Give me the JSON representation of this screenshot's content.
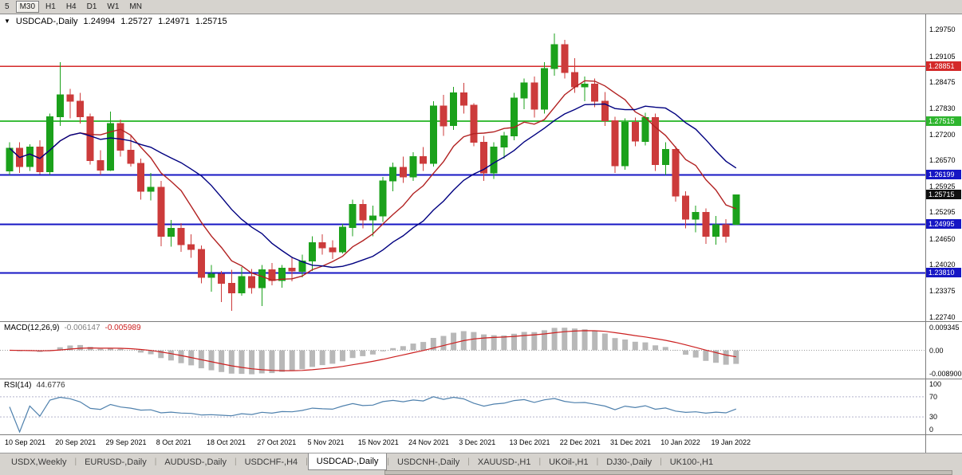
{
  "toolbar": {
    "periods": [
      {
        "label": "5",
        "pressed": false
      },
      {
        "label": "M30",
        "pressed": true
      },
      {
        "label": "H1",
        "pressed": false
      },
      {
        "label": "H4",
        "pressed": false
      },
      {
        "label": "D1",
        "pressed": false
      },
      {
        "label": "W1",
        "pressed": false
      },
      {
        "label": "MN",
        "pressed": false
      }
    ]
  },
  "chart_header": {
    "dropdown_icon": "▼",
    "symbol": "USDCAD-,Daily",
    "open": "1.24994",
    "high": "1.25727",
    "low": "1.24971",
    "close": "1.25715"
  },
  "chart_data": {
    "type": "candlestick",
    "symbol": "USDCAD-,Daily",
    "timeframe": "Daily",
    "ylim": [
      1.22629,
      1.30119
    ],
    "candle_up_color": "#1ba11b",
    "candle_down_color": "#cc3b3b",
    "candles": [
      [
        1.263,
        1.27,
        1.262,
        1.2685
      ],
      [
        1.2685,
        1.27,
        1.2625,
        1.264
      ],
      [
        1.264,
        1.2695,
        1.263,
        1.2688
      ],
      [
        1.2688,
        1.2705,
        1.2622,
        1.2628
      ],
      [
        1.2628,
        1.277,
        1.262,
        1.2762
      ],
      [
        1.2762,
        1.2895,
        1.274,
        1.2815
      ],
      [
        1.2815,
        1.283,
        1.2758,
        1.28
      ],
      [
        1.28,
        1.282,
        1.2745,
        1.2762
      ],
      [
        1.2762,
        1.277,
        1.2645,
        1.2655
      ],
      [
        1.2655,
        1.268,
        1.262,
        1.2632
      ],
      [
        1.2632,
        1.2775,
        1.263,
        1.2745
      ],
      [
        1.2745,
        1.2755,
        1.2665,
        1.268
      ],
      [
        1.268,
        1.2718,
        1.264,
        1.2648
      ],
      [
        1.2648,
        1.266,
        1.256,
        1.258
      ],
      [
        1.258,
        1.2625,
        1.2558,
        1.259
      ],
      [
        1.259,
        1.2605,
        1.2446,
        1.247
      ],
      [
        1.247,
        1.251,
        1.2445,
        1.249
      ],
      [
        1.249,
        1.2502,
        1.2432,
        1.245
      ],
      [
        1.245,
        1.2475,
        1.2418,
        1.2438
      ],
      [
        1.2438,
        1.2448,
        1.2355,
        1.237
      ],
      [
        1.237,
        1.24,
        1.2335,
        1.2378
      ],
      [
        1.2378,
        1.2385,
        1.231,
        1.2355
      ],
      [
        1.2355,
        1.2388,
        1.2288,
        1.2332
      ],
      [
        1.2332,
        1.2395,
        1.2325,
        1.2372
      ],
      [
        1.2372,
        1.239,
        1.233,
        1.2345
      ],
      [
        1.2345,
        1.24,
        1.23,
        1.2388
      ],
      [
        1.2388,
        1.2405,
        1.235,
        1.2362
      ],
      [
        1.2362,
        1.24,
        1.2345,
        1.2392
      ],
      [
        1.2392,
        1.242,
        1.236,
        1.2385
      ],
      [
        1.2385,
        1.2425,
        1.237,
        1.241
      ],
      [
        1.241,
        1.247,
        1.2385,
        1.2455
      ],
      [
        1.2455,
        1.2475,
        1.2425,
        1.2442
      ],
      [
        1.2442,
        1.246,
        1.2415,
        1.2432
      ],
      [
        1.2432,
        1.25,
        1.2428,
        1.2492
      ],
      [
        1.2492,
        1.256,
        1.247,
        1.2548
      ],
      [
        1.2548,
        1.256,
        1.249,
        1.251
      ],
      [
        1.251,
        1.2545,
        1.247,
        1.252
      ],
      [
        1.252,
        1.2615,
        1.2505,
        1.2605
      ],
      [
        1.2605,
        1.265,
        1.258,
        1.2638
      ],
      [
        1.2638,
        1.2665,
        1.26,
        1.2615
      ],
      [
        1.2615,
        1.2675,
        1.2605,
        1.2665
      ],
      [
        1.2665,
        1.2688,
        1.263,
        1.2648
      ],
      [
        1.2648,
        1.28,
        1.264,
        1.2788
      ],
      [
        1.2788,
        1.2815,
        1.2715,
        1.274
      ],
      [
        1.274,
        1.2835,
        1.273,
        1.282
      ],
      [
        1.282,
        1.2845,
        1.277,
        1.279
      ],
      [
        1.279,
        1.2795,
        1.269,
        1.27
      ],
      [
        1.27,
        1.2715,
        1.2605,
        1.2625
      ],
      [
        1.2625,
        1.27,
        1.261,
        1.2688
      ],
      [
        1.2688,
        1.2725,
        1.266,
        1.2715
      ],
      [
        1.2715,
        1.282,
        1.2705,
        1.2808
      ],
      [
        1.2808,
        1.2855,
        1.278,
        1.2845
      ],
      [
        1.2845,
        1.286,
        1.276,
        1.278
      ],
      [
        1.278,
        1.2895,
        1.277,
        1.288
      ],
      [
        1.288,
        1.2965,
        1.2862,
        1.2938
      ],
      [
        1.2938,
        1.295,
        1.2855,
        1.287
      ],
      [
        1.287,
        1.2905,
        1.282,
        1.2835
      ],
      [
        1.2835,
        1.286,
        1.28,
        1.2842
      ],
      [
        1.2842,
        1.2855,
        1.2785,
        1.28
      ],
      [
        1.28,
        1.2822,
        1.274,
        1.2752
      ],
      [
        1.2752,
        1.2762,
        1.2625,
        1.2642
      ],
      [
        1.2642,
        1.2758,
        1.2633,
        1.2748
      ],
      [
        1.2748,
        1.276,
        1.269,
        1.2702
      ],
      [
        1.2702,
        1.2772,
        1.2692,
        1.276
      ],
      [
        1.276,
        1.277,
        1.263,
        1.2645
      ],
      [
        1.2645,
        1.27,
        1.262,
        1.2682
      ],
      [
        1.2682,
        1.269,
        1.2555,
        1.2568
      ],
      [
        1.2568,
        1.258,
        1.249,
        1.2512
      ],
      [
        1.2512,
        1.2545,
        1.248,
        1.2528
      ],
      [
        1.2528,
        1.2538,
        1.2452,
        1.247
      ],
      [
        1.247,
        1.252,
        1.245,
        1.2498
      ],
      [
        1.2498,
        1.2512,
        1.2455,
        1.247
      ],
      [
        1.24994,
        1.25727,
        1.24971,
        1.25715
      ]
    ],
    "x_labels": [
      {
        "index": 0,
        "text": "10 Sep 2021"
      },
      {
        "index": 5,
        "text": "20 Sep 2021"
      },
      {
        "index": 10,
        "text": "29 Sep 2021"
      },
      {
        "index": 15,
        "text": "8 Oct 2021"
      },
      {
        "index": 20,
        "text": "18 Oct 2021"
      },
      {
        "index": 25,
        "text": "27 Oct 2021"
      },
      {
        "index": 30,
        "text": "5 Nov 2021"
      },
      {
        "index": 35,
        "text": "15 Nov 2021"
      },
      {
        "index": 40,
        "text": "24 Nov 2021"
      },
      {
        "index": 45,
        "text": "3 Dec 2021"
      },
      {
        "index": 50,
        "text": "13 Dec 2021"
      },
      {
        "index": 55,
        "text": "22 Dec 2021"
      },
      {
        "index": 60,
        "text": "31 Dec 2021"
      },
      {
        "index": 65,
        "text": "10 Jan 2022"
      },
      {
        "index": 70,
        "text": "19 Jan 2022"
      }
    ],
    "hlines": [
      {
        "value": 1.28851,
        "color": "#d42a2a",
        "width": 1.4
      },
      {
        "value": 1.27515,
        "color": "#3dbd3d",
        "width": 2
      },
      {
        "value": 1.26199,
        "color": "#1616c4",
        "width": 2
      },
      {
        "value": 1.24995,
        "color": "#1616c4",
        "width": 2
      },
      {
        "value": 1.2381,
        "color": "#1616c4",
        "width": 2
      }
    ],
    "price_axis": {
      "ticks": [
        "1.29750",
        "1.29105",
        "1.28475",
        "1.27830",
        "1.27200",
        "1.26570",
        "1.25925",
        "1.25295",
        "1.24650",
        "1.24020",
        "1.23375",
        "1.22740"
      ],
      "tags": [
        {
          "value": "1.28851",
          "bg": "#d42a2a"
        },
        {
          "value": "1.27515",
          "bg": "#2eb52e"
        },
        {
          "value": "1.26199",
          "bg": "#1616c4"
        },
        {
          "value": "1.25715",
          "bg": "#101010"
        },
        {
          "value": "1.24995",
          "bg": "#1616c4"
        },
        {
          "value": "1.23810",
          "bg": "#1616c4"
        }
      ]
    },
    "moving_averages": [
      {
        "period": 8,
        "color": "#b22222"
      },
      {
        "period": 16,
        "color": "#000080"
      }
    ],
    "indicators": {
      "macd": {
        "label": "MACD(12,26,9)",
        "value_main": "-0.006147",
        "value_signal": "-0.005989",
        "axis": [
          "0.009345",
          "0.00",
          "-0.008900"
        ],
        "histogram_color": "#b8b8b8",
        "signal_color": "#cc2020"
      },
      "rsi": {
        "label": "RSI(14)",
        "value": "44.6776",
        "axis": [
          "100",
          "70",
          "30",
          "0"
        ],
        "levels": [
          70,
          30
        ],
        "line_color": "#4f81ad"
      }
    }
  },
  "tabs": {
    "separator": "|",
    "items": [
      {
        "label": "USDX,Weekly",
        "active": false
      },
      {
        "label": "EURUSD-,Daily",
        "active": false
      },
      {
        "label": "AUDUSD-,Daily",
        "active": false
      },
      {
        "label": "USDCHF-,H4",
        "active": false
      },
      {
        "label": "USDCAD-,Daily",
        "active": true
      },
      {
        "label": "USDCNH-,Daily",
        "active": false
      },
      {
        "label": "XAUUSD-,H1",
        "active": false
      },
      {
        "label": "UKOil-,H1",
        "active": false
      },
      {
        "label": "DJ30-,Daily",
        "active": false
      },
      {
        "label": "UK100-,H1",
        "active": false
      }
    ]
  }
}
